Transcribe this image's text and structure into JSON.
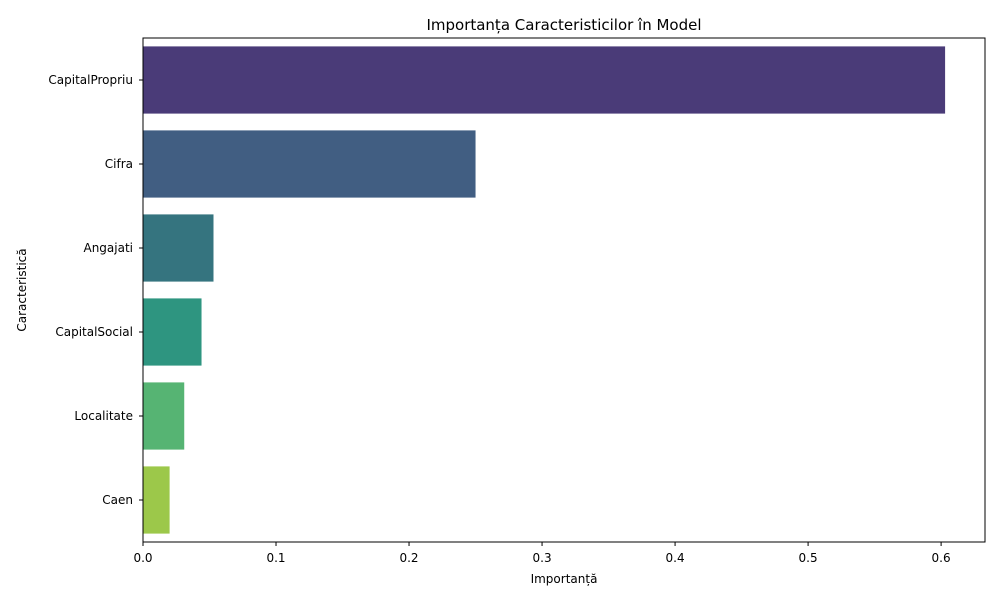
{
  "chart_data": {
    "type": "bar",
    "orientation": "horizontal",
    "title": "Importanța Caracteristicilor în Model",
    "xlabel": "Importanță",
    "ylabel": "Caracteristică",
    "categories": [
      "CapitalPropriu",
      "Cifra",
      "Angajati",
      "CapitalSocial",
      "Localitate",
      "Caen"
    ],
    "values": [
      0.603,
      0.25,
      0.053,
      0.044,
      0.031,
      0.02
    ],
    "colors": [
      "#4a3b78",
      "#415e82",
      "#35747f",
      "#2e9580",
      "#56b473",
      "#9cc84a"
    ],
    "xlim": [
      0,
      0.633
    ],
    "xticks": [
      0,
      0.1,
      0.2,
      0.3,
      0.4,
      0.5,
      0.6
    ],
    "xtick_labels": [
      "0.0",
      "0.1",
      "0.2",
      "0.3",
      "0.4",
      "0.5",
      "0.6"
    ],
    "grid": false,
    "legend": "none"
  }
}
